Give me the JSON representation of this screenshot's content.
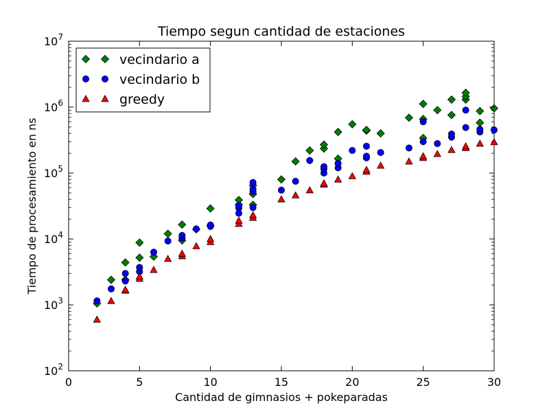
{
  "chart_data": {
    "type": "scatter",
    "title": "Tiempo segun cantidad de estaciones",
    "xlabel": "Cantidad de gimnasios + pokeparadas",
    "ylabel": "Tiempo de procesamiento en ns",
    "xlim": [
      0,
      30
    ],
    "ylim": [
      100,
      10000000
    ],
    "yscale": "log",
    "x_ticks": [
      0,
      5,
      10,
      15,
      20,
      25,
      30
    ],
    "x_tick_labels": [
      "0",
      "5",
      "10",
      "15",
      "20",
      "25",
      "30"
    ],
    "y_ticks": [
      100,
      1000,
      10000,
      100000,
      1000000,
      10000000
    ],
    "y_tick_exponents": [
      "2",
      "3",
      "4",
      "5",
      "6",
      "7"
    ],
    "y_tick_base": "10",
    "grid": false,
    "legend_position": "top-left",
    "series": [
      {
        "name": "vecindario a",
        "marker": "diamond",
        "color": "#008000",
        "points": [
          [
            2,
            1050
          ],
          [
            3,
            2400
          ],
          [
            4,
            2400
          ],
          [
            4,
            4400
          ],
          [
            5,
            5200
          ],
          [
            5,
            8800
          ],
          [
            6,
            5400
          ],
          [
            7,
            12000
          ],
          [
            8,
            9500
          ],
          [
            8,
            16500
          ],
          [
            9,
            14000
          ],
          [
            10,
            16000
          ],
          [
            10,
            29000
          ],
          [
            12,
            33000
          ],
          [
            12,
            39000
          ],
          [
            13,
            33000
          ],
          [
            13,
            48000
          ],
          [
            13,
            65000
          ],
          [
            15,
            80000
          ],
          [
            16,
            150000
          ],
          [
            17,
            220000
          ],
          [
            18,
            235000
          ],
          [
            18,
            270000
          ],
          [
            19,
            165000
          ],
          [
            19,
            420000
          ],
          [
            20,
            550000
          ],
          [
            21,
            440000
          ],
          [
            21,
            450000
          ],
          [
            22,
            400000
          ],
          [
            24,
            690000
          ],
          [
            25,
            340000
          ],
          [
            25,
            660000
          ],
          [
            25,
            1120000
          ],
          [
            26,
            900000
          ],
          [
            27,
            760000
          ],
          [
            27,
            1300000
          ],
          [
            28,
            1300000
          ],
          [
            28,
            1450000
          ],
          [
            28,
            1650000
          ],
          [
            29,
            580000
          ],
          [
            29,
            870000
          ],
          [
            30,
            960000
          ]
        ]
      },
      {
        "name": "vecindario b",
        "marker": "circle",
        "color": "#0000ff",
        "points": [
          [
            2,
            1150
          ],
          [
            3,
            1750
          ],
          [
            4,
            2300
          ],
          [
            4,
            3000
          ],
          [
            5,
            3200
          ],
          [
            5,
            3700
          ],
          [
            6,
            6300
          ],
          [
            7,
            9300
          ],
          [
            8,
            10300
          ],
          [
            8,
            11300
          ],
          [
            9,
            14200
          ],
          [
            10,
            15500
          ],
          [
            10,
            16300
          ],
          [
            12,
            24500
          ],
          [
            12,
            29500
          ],
          [
            12,
            32000
          ],
          [
            13,
            30000
          ],
          [
            13,
            52000
          ],
          [
            13,
            57000
          ],
          [
            13,
            72000
          ],
          [
            15,
            55000
          ],
          [
            16,
            75000
          ],
          [
            17,
            155000
          ],
          [
            18,
            100000
          ],
          [
            18,
            115000
          ],
          [
            18,
            125000
          ],
          [
            19,
            120000
          ],
          [
            19,
            140000
          ],
          [
            20,
            220000
          ],
          [
            21,
            170000
          ],
          [
            21,
            180000
          ],
          [
            21,
            255000
          ],
          [
            22,
            205000
          ],
          [
            24,
            240000
          ],
          [
            25,
            300000
          ],
          [
            25,
            600000
          ],
          [
            26,
            280000
          ],
          [
            27,
            350000
          ],
          [
            27,
            390000
          ],
          [
            28,
            490000
          ],
          [
            28,
            900000
          ],
          [
            29,
            420000
          ],
          [
            29,
            460000
          ],
          [
            30,
            450000
          ]
        ]
      },
      {
        "name": "greedy",
        "marker": "triangle",
        "color": "#ff0000",
        "points": [
          [
            2,
            600
          ],
          [
            3,
            1150
          ],
          [
            4,
            1650
          ],
          [
            4,
            1700
          ],
          [
            5,
            2500
          ],
          [
            5,
            2700
          ],
          [
            6,
            3400
          ],
          [
            7,
            5000
          ],
          [
            8,
            5500
          ],
          [
            8,
            6000
          ],
          [
            9,
            7800
          ],
          [
            10,
            9000
          ],
          [
            10,
            10000
          ],
          [
            12,
            17000
          ],
          [
            12,
            19000
          ],
          [
            13,
            21000
          ],
          [
            13,
            23000
          ],
          [
            15,
            40000
          ],
          [
            16,
            46000
          ],
          [
            17,
            55000
          ],
          [
            18,
            67000
          ],
          [
            18,
            70000
          ],
          [
            19,
            80000
          ],
          [
            20,
            90000
          ],
          [
            21,
            105000
          ],
          [
            21,
            112000
          ],
          [
            22,
            130000
          ],
          [
            24,
            150000
          ],
          [
            25,
            170000
          ],
          [
            25,
            180000
          ],
          [
            26,
            195000
          ],
          [
            27,
            225000
          ],
          [
            28,
            240000
          ],
          [
            28,
            255000
          ],
          [
            29,
            280000
          ],
          [
            30,
            295000
          ]
        ]
      }
    ]
  }
}
